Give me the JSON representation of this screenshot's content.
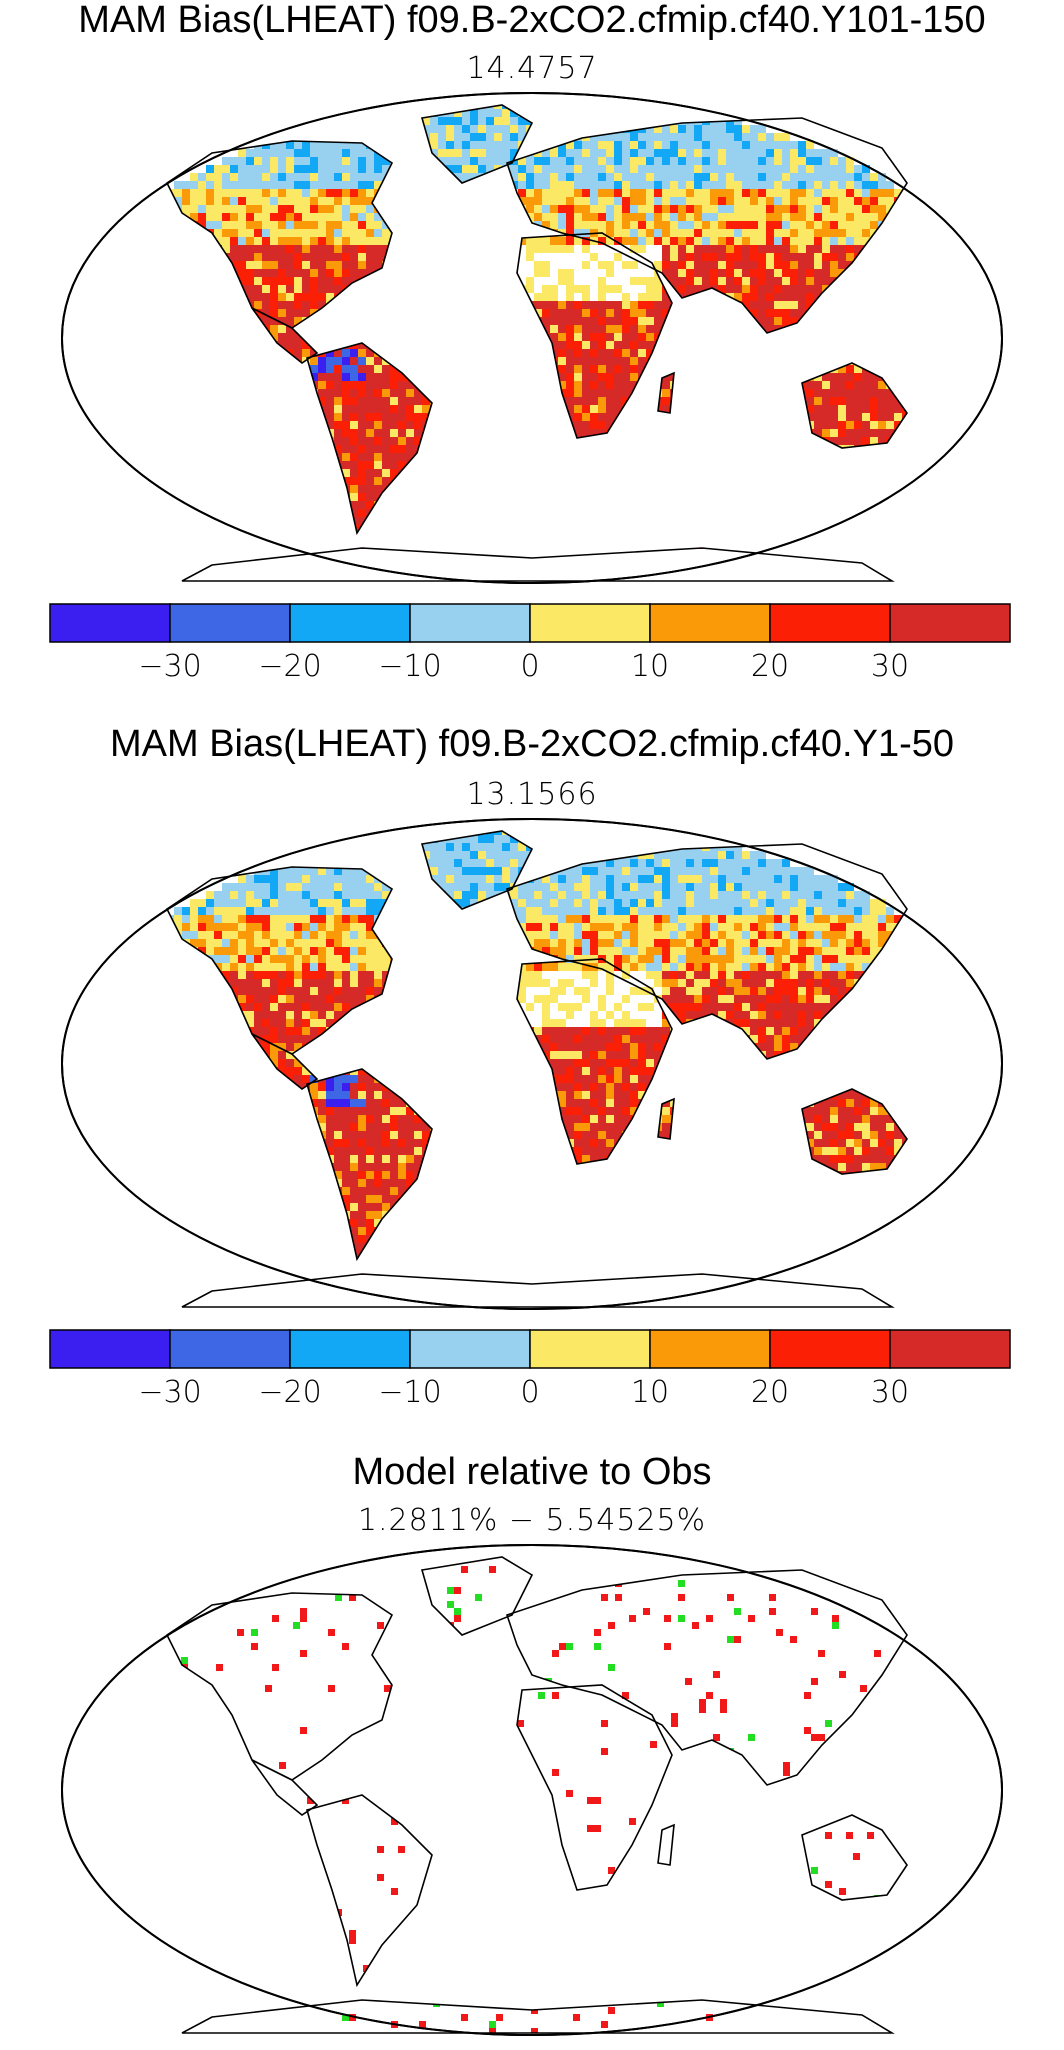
{
  "panels": [
    {
      "title": "MAM Bias(LHEAT) f09.B-2xCO2.cfmip.cf40.Y101-150",
      "subtitle": "14.4757",
      "kind": "bias"
    },
    {
      "title": "MAM Bias(LHEAT) f09.B-2xCO2.cfmip.cf40.Y1-50",
      "subtitle": "13.1566",
      "kind": "bias"
    },
    {
      "title": "Model relative to Obs",
      "subtitle": "1.2811% − 5.54525%",
      "kind": "significance"
    }
  ],
  "colorbar": {
    "colors": [
      "#3a1ff0",
      "#3e67e6",
      "#12a8f5",
      "#98d1f0",
      "#fbe965",
      "#fb9a08",
      "#fb2005",
      "#d62a28"
    ],
    "tick_labels": [
      "−30",
      "−20",
      "−10",
      "0",
      "10",
      "20",
      "30"
    ]
  },
  "significance_colors": {
    "model_higher": "#f01818",
    "model_lower": "#22dd22"
  }
}
